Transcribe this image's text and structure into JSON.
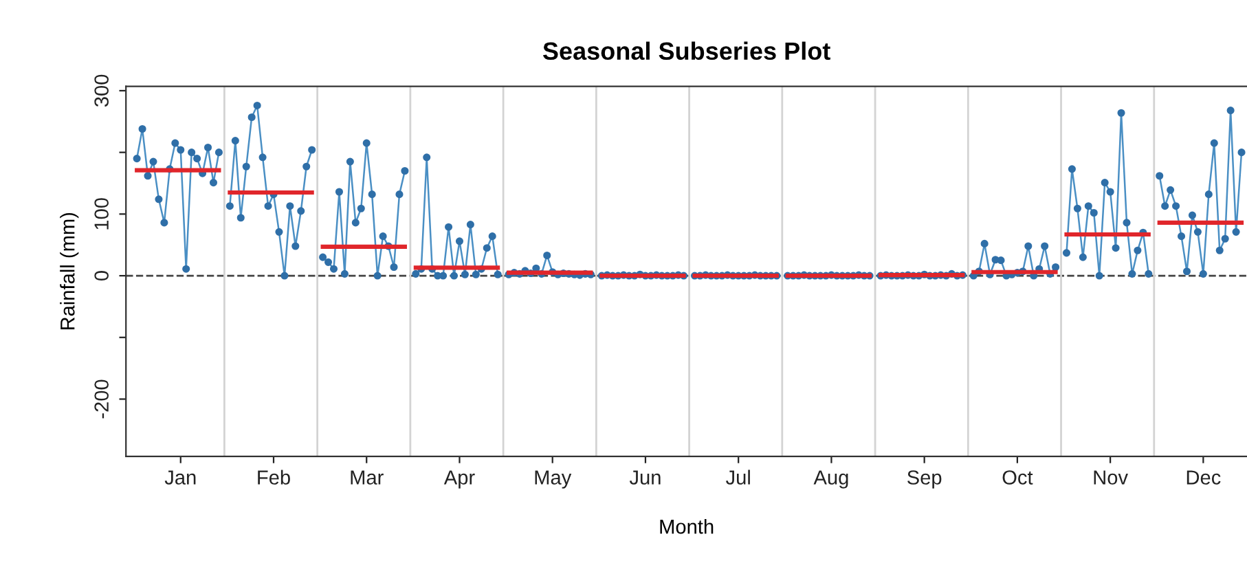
{
  "chart_data": {
    "type": "line",
    "title": "Seasonal Subseries Plot",
    "xlabel": "Month",
    "ylabel": "Rainfall (mm)",
    "ylim": [
      -293,
      307
    ],
    "yticks": [
      300,
      {
        "value": 200,
        "label": null
      },
      100,
      0,
      {
        "value": -100,
        "label": null
      },
      -200
    ],
    "marker": "circle",
    "grid": false,
    "legend": false,
    "categories": [
      null,
      null,
      null,
      null,
      null,
      null,
      null,
      null,
      "Jan",
      null,
      null,
      null,
      null,
      null,
      null,
      null,
      null,
      null,
      null,
      null,
      null,
      null,
      null,
      null,
      null,
      "Feb",
      null,
      null,
      null,
      null,
      null,
      null,
      null,
      null,
      null,
      null,
      null,
      null,
      null,
      null,
      null,
      null,
      "Mar",
      null,
      null,
      null,
      null,
      null,
      null,
      null,
      null,
      null,
      null,
      null,
      null,
      null,
      null,
      null,
      null,
      "Apr",
      null,
      null,
      null,
      null,
      null,
      null,
      null,
      null,
      null,
      null,
      null,
      null,
      null,
      null,
      null,
      null,
      "May",
      null,
      null,
      null,
      null,
      null,
      null,
      null,
      null,
      null,
      null,
      null,
      null,
      null,
      null,
      null,
      null,
      "Jun",
      null,
      null,
      null,
      null,
      null,
      null,
      null,
      null,
      null,
      null,
      null,
      null,
      null,
      null,
      null,
      null,
      "Jul",
      null,
      null,
      null,
      null,
      null,
      null,
      null,
      null,
      null,
      null,
      null,
      null,
      null,
      null,
      null,
      null,
      "Aug",
      null,
      null,
      null,
      null,
      null,
      null,
      null,
      null,
      null,
      null,
      null,
      null,
      null,
      null,
      null,
      null,
      "Sep",
      null,
      null,
      null,
      null,
      null,
      null,
      null,
      null,
      null,
      null,
      null,
      null,
      null,
      null,
      null,
      null,
      "Oct",
      null,
      null,
      null,
      null,
      null,
      null,
      null,
      null,
      null,
      null,
      null,
      null,
      null,
      null,
      null,
      null,
      "Nov",
      null,
      null,
      null,
      null,
      null,
      null,
      null,
      null,
      null,
      null,
      null,
      null,
      null,
      null,
      null,
      null,
      "Dec",
      null,
      null,
      null,
      null,
      null,
      null,
      null,
      null
    ],
    "ref_lines": [
      {
        "axis": "y",
        "value": 0,
        "color": "#444444",
        "line_style": "dashed"
      }
    ],
    "series": [
      {
        "color": "#4a8fc4",
        "values": [
          190,
          238,
          162,
          185,
          124,
          86,
          173,
          215,
          204,
          11,
          200,
          190,
          166,
          208,
          151,
          200,
          null,
          113,
          219,
          94,
          177,
          257,
          276,
          192,
          113,
          132,
          71,
          0,
          113,
          48,
          105,
          177,
          204,
          null,
          30,
          22,
          11,
          136,
          3,
          185,
          86,
          109,
          215,
          132,
          0,
          64,
          48,
          14,
          132,
          170,
          null,
          3,
          11,
          192,
          11,
          0,
          0,
          79,
          0,
          56,
          2,
          83,
          2,
          11,
          45,
          64,
          2,
          null,
          2,
          5,
          3,
          8,
          4,
          12,
          3,
          33,
          6,
          2,
          4,
          3,
          2,
          1,
          3,
          2,
          null,
          0,
          1,
          0,
          0,
          1,
          0,
          0,
          2,
          0,
          0,
          1,
          0,
          0,
          0,
          1,
          0,
          null,
          0,
          0,
          1,
          0,
          0,
          0,
          1,
          0,
          0,
          0,
          0,
          1,
          0,
          0,
          0,
          0,
          null,
          0,
          0,
          0,
          1,
          0,
          0,
          0,
          0,
          1,
          0,
          0,
          0,
          0,
          1,
          0,
          0,
          null,
          0,
          1,
          0,
          0,
          0,
          1,
          0,
          0,
          2,
          0,
          0,
          1,
          0,
          3,
          0,
          1,
          null,
          0,
          7,
          52,
          2,
          26,
          25,
          0,
          2,
          5,
          7,
          48,
          0,
          11,
          48,
          3,
          14,
          null,
          37,
          173,
          109,
          30,
          113,
          102,
          0,
          151,
          136,
          45,
          264,
          86,
          3,
          41,
          70,
          3,
          null,
          162,
          113,
          139,
          113,
          64,
          7,
          98,
          71,
          3,
          132,
          215,
          41,
          60,
          268,
          71,
          200,
          null
        ]
      },
      {
        "color": "#e0262b",
        "marker": "none",
        "values": [
          171,
          171,
          171,
          171,
          171,
          171,
          171,
          171,
          171,
          171,
          171,
          171,
          171,
          171,
          171,
          171,
          null,
          135,
          135,
          135,
          135,
          135,
          135,
          135,
          135,
          135,
          135,
          135,
          135,
          135,
          135,
          135,
          135,
          null,
          47,
          47,
          47,
          47,
          47,
          47,
          47,
          47,
          47,
          47,
          47,
          47,
          47,
          47,
          47,
          47,
          null,
          13,
          13,
          13,
          13,
          13,
          13,
          13,
          13,
          13,
          13,
          13,
          13,
          13,
          13,
          13,
          13,
          null,
          5,
          5,
          5,
          5,
          5,
          5,
          5,
          5,
          5,
          5,
          5,
          5,
          5,
          5,
          5,
          5,
          null,
          0,
          0,
          0,
          0,
          0,
          0,
          0,
          0,
          0,
          0,
          0,
          0,
          0,
          0,
          0,
          0,
          null,
          0,
          0,
          0,
          0,
          0,
          0,
          0,
          0,
          0,
          0,
          0,
          0,
          0,
          0,
          0,
          0,
          null,
          0,
          0,
          0,
          0,
          0,
          0,
          0,
          0,
          0,
          0,
          0,
          0,
          0,
          0,
          0,
          0,
          null,
          1,
          1,
          1,
          1,
          1,
          1,
          1,
          1,
          1,
          1,
          1,
          1,
          1,
          1,
          1,
          1,
          null,
          6,
          6,
          6,
          6,
          6,
          6,
          6,
          6,
          6,
          6,
          6,
          6,
          6,
          6,
          6,
          6,
          null,
          67,
          67,
          67,
          67,
          67,
          67,
          67,
          67,
          67,
          67,
          67,
          67,
          67,
          67,
          67,
          67,
          null,
          86,
          86,
          86,
          86,
          86,
          86,
          86,
          86,
          86,
          86,
          86,
          86,
          86,
          86,
          86,
          86,
          null
        ]
      }
    ]
  }
}
